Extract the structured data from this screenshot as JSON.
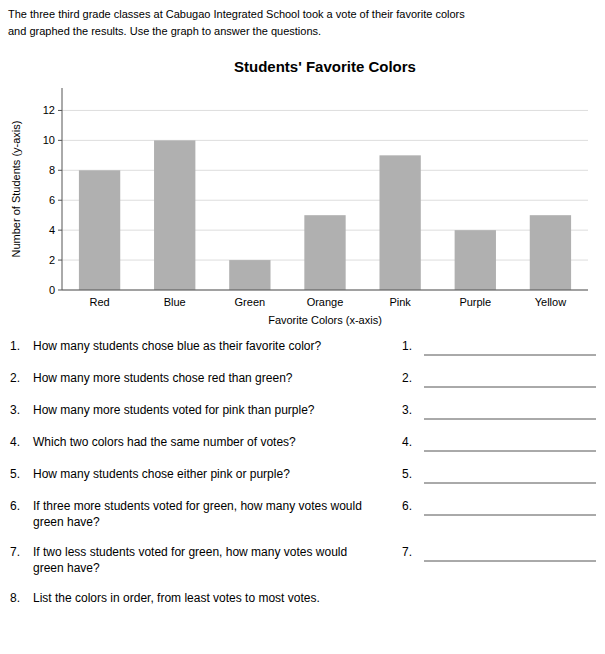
{
  "header": [
    "The three third grade classes at Cabugao Integrated School took a vote of their favorite colors",
    "and graphed the results.  Use the graph to answer the questions."
  ],
  "chart_data": {
    "type": "bar",
    "title": "Students' Favorite Colors",
    "categories": [
      "Red",
      "Blue",
      "Green",
      "Orange",
      "Pink",
      "Purple",
      "Yellow"
    ],
    "values": [
      8,
      10,
      2,
      5,
      9,
      4,
      5
    ],
    "color": "#b0b0b0",
    "xlabel": "Favorite Colors (x-axis)",
    "ylabel": "Number of Students (y-axis)",
    "ylim": [
      0,
      13.5
    ],
    "yticks": [
      0,
      2,
      4,
      6,
      8,
      10,
      12
    ],
    "grid": true
  },
  "questions": [
    {
      "num": "1.",
      "text": "How many students chose blue as their favorite color?",
      "has_line": true
    },
    {
      "num": "2.",
      "text": "How many more students chose red than green?",
      "has_line": true
    },
    {
      "num": "3.",
      "text": "How many more students voted for pink than purple?",
      "has_line": true
    },
    {
      "num": "4.",
      "text": "Which two colors had the same number of votes?",
      "has_line": true
    },
    {
      "num": "5.",
      "text": "How many students chose either pink or purple?",
      "has_line": true
    },
    {
      "num": "6.",
      "text": "If three more students voted for green, how many votes would",
      "text2": "green have?",
      "has_line": true
    },
    {
      "num": "7.",
      "text": "If two less students voted for green, how many votes would",
      "text2": "green have?",
      "has_line": true
    },
    {
      "num": "8.",
      "text": "List the colors in order, from least votes to most votes.",
      "has_line": false
    }
  ]
}
